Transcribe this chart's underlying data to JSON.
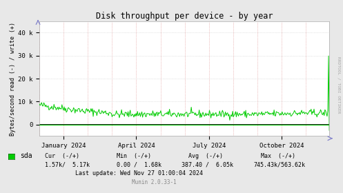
{
  "title": "Disk throughput per device - by year",
  "ylabel": "Bytes/second read (-) / write (+)",
  "background_color": "#e8e8e8",
  "plot_bg_color": "#ffffff",
  "line_color": "#00cc00",
  "zero_line_color": "#000000",
  "ylim": [
    -5000,
    45000
  ],
  "yticks": [
    0,
    10000,
    20000,
    30000,
    40000
  ],
  "ytick_labels": [
    "0",
    "10 k",
    "20 k",
    "30 k",
    "40 k"
  ],
  "legend_text": "sda",
  "legend_color": "#00cc00",
  "watermark": "RRDTOOL / TOBI OETIKER",
  "xticklabels": [
    "January 2024",
    "April 2024",
    "July 2024",
    "October 2024"
  ],
  "num_points": 400
}
